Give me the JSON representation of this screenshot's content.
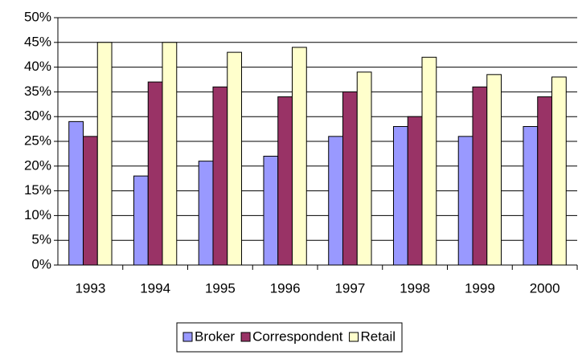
{
  "chart_data": {
    "type": "bar",
    "categories": [
      "1993",
      "1994",
      "1995",
      "1996",
      "1997",
      "1998",
      "1999",
      "2000"
    ],
    "series": [
      {
        "name": "Broker",
        "color": "#9999ff",
        "values": [
          29,
          18,
          21,
          22,
          26,
          28,
          26,
          28
        ]
      },
      {
        "name": "Correspondent",
        "color": "#993366",
        "values": [
          26,
          37,
          36,
          34,
          35,
          30,
          36,
          34
        ]
      },
      {
        "name": "Retail",
        "color": "#ffffcc",
        "values": [
          45,
          45,
          43,
          44,
          39,
          42,
          38.5,
          38
        ]
      }
    ],
    "ylim": [
      0,
      50
    ],
    "yticks": [
      {
        "value": 0,
        "label": "0%"
      },
      {
        "value": 5,
        "label": "5%"
      },
      {
        "value": 10,
        "label": "10%"
      },
      {
        "value": 15,
        "label": "15%"
      },
      {
        "value": 20,
        "label": "20%"
      },
      {
        "value": 25,
        "label": "25%"
      },
      {
        "value": 30,
        "label": "30%"
      },
      {
        "value": 35,
        "label": "35%"
      },
      {
        "value": 40,
        "label": "40%"
      },
      {
        "value": 45,
        "label": "45%"
      },
      {
        "value": 50,
        "label": "50%"
      }
    ],
    "grid": true,
    "legend": "bottom"
  }
}
